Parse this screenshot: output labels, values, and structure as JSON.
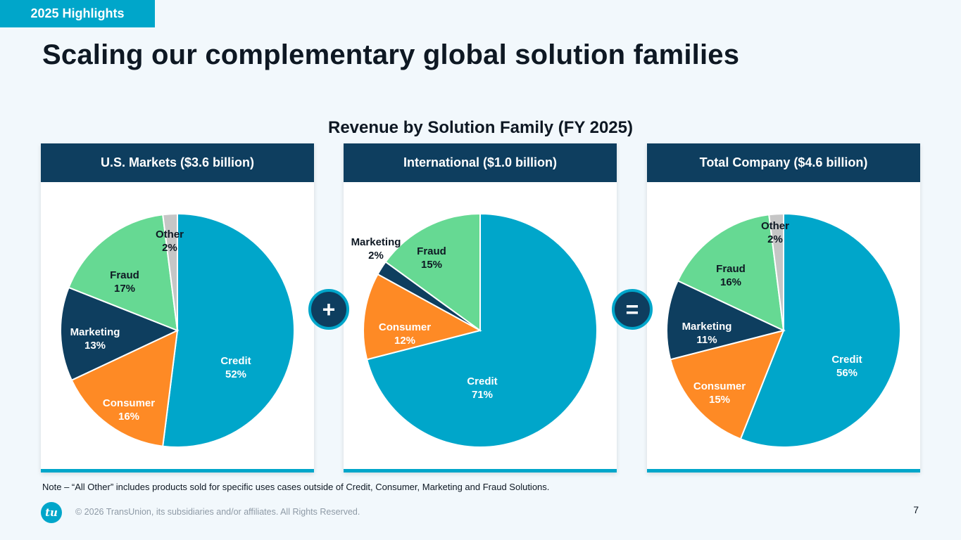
{
  "tag": "2025 Highlights",
  "title": "Scaling our complementary global solution families",
  "chart_title": "Revenue by Solution Family (FY 2025)",
  "operators": {
    "plus": "+",
    "equals": "="
  },
  "colors": {
    "Credit": "#00a6ca",
    "Consumer": "#fe8a25",
    "Marketing": "#0e3e5f",
    "Fraud": "#66d993",
    "Other": "#c6c6c6",
    "header": "#0e3e5f",
    "accent": "#00a6ca"
  },
  "chart_data": [
    {
      "type": "pie",
      "title": "U.S. Markets ($3.6 billion)",
      "slices": [
        {
          "name": "Credit",
          "value": 52
        },
        {
          "name": "Consumer",
          "value": 16
        },
        {
          "name": "Marketing",
          "value": 13
        },
        {
          "name": "Fraud",
          "value": 17
        },
        {
          "name": "Other",
          "value": 2
        }
      ]
    },
    {
      "type": "pie",
      "title": "International ($1.0 billion)",
      "slices": [
        {
          "name": "Credit",
          "value": 71
        },
        {
          "name": "Consumer",
          "value": 12
        },
        {
          "name": "Marketing",
          "value": 2
        },
        {
          "name": "Fraud",
          "value": 15
        }
      ]
    },
    {
      "type": "pie",
      "title": "Total Company ($4.6 billion)",
      "slices": [
        {
          "name": "Credit",
          "value": 56
        },
        {
          "name": "Consumer",
          "value": 15
        },
        {
          "name": "Marketing",
          "value": 11
        },
        {
          "name": "Fraud",
          "value": 16
        },
        {
          "name": "Other",
          "value": 2
        }
      ]
    }
  ],
  "note": "Note – “All Other” includes products sold for specific uses cases outside of Credit, Consumer, Marketing and Fraud Solutions.",
  "footer": {
    "logo_text": "tu",
    "copyright": "© 2026 TransUnion, its subsidiaries and/or affiliates. All Rights Reserved.",
    "page_number": "7"
  }
}
